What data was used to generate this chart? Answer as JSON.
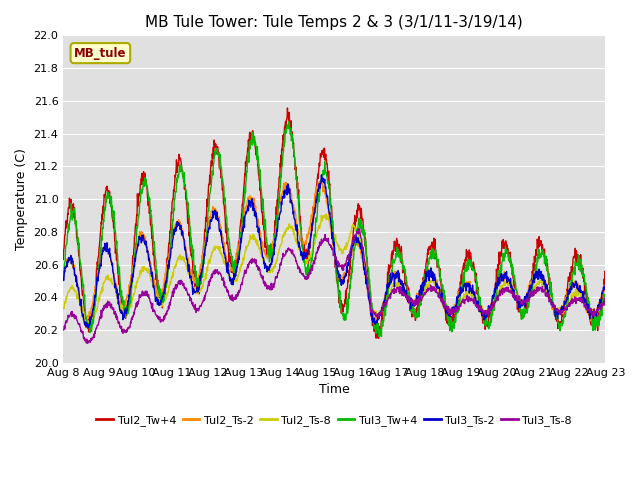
{
  "title": "MB Tule Tower: Tule Temps 2 & 3 (3/1/11-3/19/14)",
  "xlabel": "Time",
  "ylabel": "Temperature (C)",
  "ylim": [
    20.0,
    22.0
  ],
  "yticks": [
    20.0,
    20.2,
    20.4,
    20.6,
    20.8,
    21.0,
    21.2,
    21.4,
    21.6,
    21.8,
    22.0
  ],
  "bg_color": "#e0e0e0",
  "series": [
    {
      "label": "Tul2_Tw+4",
      "color": "#cc0000"
    },
    {
      "label": "Tul2_Ts-2",
      "color": "#ff8800"
    },
    {
      "label": "Tul2_Ts-8",
      "color": "#cccc00"
    },
    {
      "label": "Tul3_Tw+4",
      "color": "#00bb00"
    },
    {
      "label": "Tul3_Ts-2",
      "color": "#0000cc"
    },
    {
      "label": "Tul3_Ts-8",
      "color": "#990099"
    }
  ],
  "annotation_label": "MB_tule",
  "x_start": 0,
  "x_end": 15,
  "xtick_labels": [
    "Aug 8",
    "Aug 9",
    "Aug 10",
    "Aug 11",
    "Aug 12",
    "Aug 13",
    "Aug 14",
    "Aug 15",
    "Aug 16",
    "Aug 17",
    "Aug 18",
    "Aug 19",
    "Aug 20",
    "Aug 21",
    "Aug 22",
    "Aug 23"
  ],
  "xtick_positions": [
    0,
    1,
    2,
    3,
    4,
    5,
    6,
    7,
    8,
    9,
    10,
    11,
    12,
    13,
    14,
    15
  ],
  "title_fontsize": 11,
  "axis_label_fontsize": 9,
  "tick_fontsize": 8
}
